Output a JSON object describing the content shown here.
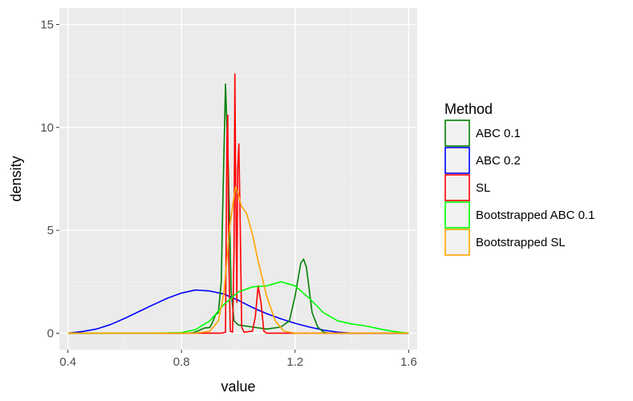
{
  "chart_data": {
    "type": "line",
    "subtype": "density",
    "xlabel": "value",
    "ylabel": "density",
    "xlim": [
      0.37,
      1.63
    ],
    "ylim": [
      -0.8,
      15.8
    ],
    "x_ticks": [
      0.4,
      0.8,
      1.2,
      1.6
    ],
    "x_tick_labels": [
      "0.4",
      "0.8",
      "1.2",
      "1.6"
    ],
    "y_ticks": [
      0,
      5,
      10,
      15
    ],
    "y_tick_labels": [
      "0",
      "5",
      "10",
      "15"
    ],
    "grid": true,
    "legend": {
      "title": "Method",
      "placement": "right"
    },
    "series": [
      {
        "name": "ABC 0.2",
        "color": "#0000ff",
        "points": [
          [
            0.4,
            0.0
          ],
          [
            0.45,
            0.08
          ],
          [
            0.5,
            0.2
          ],
          [
            0.55,
            0.42
          ],
          [
            0.6,
            0.72
          ],
          [
            0.65,
            1.05
          ],
          [
            0.7,
            1.38
          ],
          [
            0.75,
            1.7
          ],
          [
            0.8,
            1.95
          ],
          [
            0.85,
            2.1
          ],
          [
            0.9,
            2.05
          ],
          [
            0.95,
            1.9
          ],
          [
            1.0,
            1.6
          ],
          [
            1.05,
            1.25
          ],
          [
            1.1,
            0.95
          ],
          [
            1.15,
            0.7
          ],
          [
            1.2,
            0.48
          ],
          [
            1.25,
            0.3
          ],
          [
            1.3,
            0.15
          ],
          [
            1.35,
            0.05
          ],
          [
            1.4,
            0.0
          ],
          [
            1.45,
            0.0
          ],
          [
            1.5,
            0.0
          ],
          [
            1.55,
            0.0
          ],
          [
            1.6,
            0.0
          ]
        ]
      },
      {
        "name": "ABC 0.1",
        "color": "#008000",
        "points": [
          [
            0.4,
            0.0
          ],
          [
            0.82,
            0.0
          ],
          [
            0.84,
            0.02
          ],
          [
            0.86,
            0.12
          ],
          [
            0.88,
            0.25
          ],
          [
            0.9,
            0.28
          ],
          [
            0.91,
            0.55
          ],
          [
            0.92,
            0.9
          ],
          [
            0.93,
            1.0
          ],
          [
            0.94,
            2.5
          ],
          [
            0.945,
            6.0
          ],
          [
            0.955,
            12.1
          ],
          [
            0.965,
            8.0
          ],
          [
            0.975,
            2.0
          ],
          [
            0.985,
            0.6
          ],
          [
            1.0,
            0.4
          ],
          [
            1.05,
            0.3
          ],
          [
            1.1,
            0.2
          ],
          [
            1.15,
            0.3
          ],
          [
            1.18,
            0.6
          ],
          [
            1.2,
            1.8
          ],
          [
            1.22,
            3.4
          ],
          [
            1.23,
            3.6
          ],
          [
            1.24,
            3.2
          ],
          [
            1.26,
            1.0
          ],
          [
            1.28,
            0.3
          ],
          [
            1.3,
            0.05
          ],
          [
            1.32,
            0.0
          ],
          [
            1.6,
            0.0
          ]
        ]
      },
      {
        "name": "SL",
        "color": "#ff0000",
        "points": [
          [
            0.4,
            0.0
          ],
          [
            0.94,
            0.0
          ],
          [
            0.955,
            0.05
          ],
          [
            0.96,
            9.5
          ],
          [
            0.963,
            10.6
          ],
          [
            0.966,
            4.0
          ],
          [
            0.972,
            0.1
          ],
          [
            0.98,
            0.05
          ],
          [
            0.985,
            4.0
          ],
          [
            0.988,
            12.6
          ],
          [
            0.991,
            7.0
          ],
          [
            0.995,
            1.5
          ],
          [
            0.998,
            8.0
          ],
          [
            1.002,
            9.2
          ],
          [
            1.006,
            6.0
          ],
          [
            1.012,
            0.3
          ],
          [
            1.02,
            0.05
          ],
          [
            1.05,
            0.1
          ],
          [
            1.06,
            0.8
          ],
          [
            1.07,
            2.3
          ],
          [
            1.08,
            1.5
          ],
          [
            1.09,
            0.1
          ],
          [
            1.1,
            0.0
          ],
          [
            1.6,
            0.0
          ]
        ]
      },
      {
        "name": "Bootstrapped ABC 0.1",
        "color": "#00ff00",
        "points": [
          [
            0.4,
            0.0
          ],
          [
            0.7,
            0.0
          ],
          [
            0.8,
            0.03
          ],
          [
            0.85,
            0.18
          ],
          [
            0.9,
            0.6
          ],
          [
            0.95,
            1.4
          ],
          [
            1.0,
            2.0
          ],
          [
            1.05,
            2.25
          ],
          [
            1.1,
            2.3
          ],
          [
            1.15,
            2.5
          ],
          [
            1.2,
            2.3
          ],
          [
            1.25,
            1.7
          ],
          [
            1.3,
            1.0
          ],
          [
            1.35,
            0.6
          ],
          [
            1.4,
            0.45
          ],
          [
            1.45,
            0.35
          ],
          [
            1.5,
            0.2
          ],
          [
            1.55,
            0.08
          ],
          [
            1.6,
            0.0
          ]
        ]
      },
      {
        "name": "Bootstrapped SL",
        "color": "#ffa500",
        "points": [
          [
            0.4,
            0.0
          ],
          [
            0.85,
            0.0
          ],
          [
            0.9,
            0.1
          ],
          [
            0.93,
            0.6
          ],
          [
            0.95,
            2.0
          ],
          [
            0.97,
            5.2
          ],
          [
            0.99,
            7.1
          ],
          [
            1.0,
            6.8
          ],
          [
            1.01,
            6.2
          ],
          [
            1.03,
            5.8
          ],
          [
            1.05,
            4.8
          ],
          [
            1.07,
            3.5
          ],
          [
            1.1,
            1.8
          ],
          [
            1.13,
            0.6
          ],
          [
            1.16,
            0.1
          ],
          [
            1.2,
            0.0
          ],
          [
            1.6,
            0.0
          ]
        ]
      }
    ],
    "legend_order": [
      "ABC 0.1",
      "ABC 0.2",
      "SL",
      "Bootstrapped ABC 0.1",
      "Bootstrapped SL"
    ]
  }
}
